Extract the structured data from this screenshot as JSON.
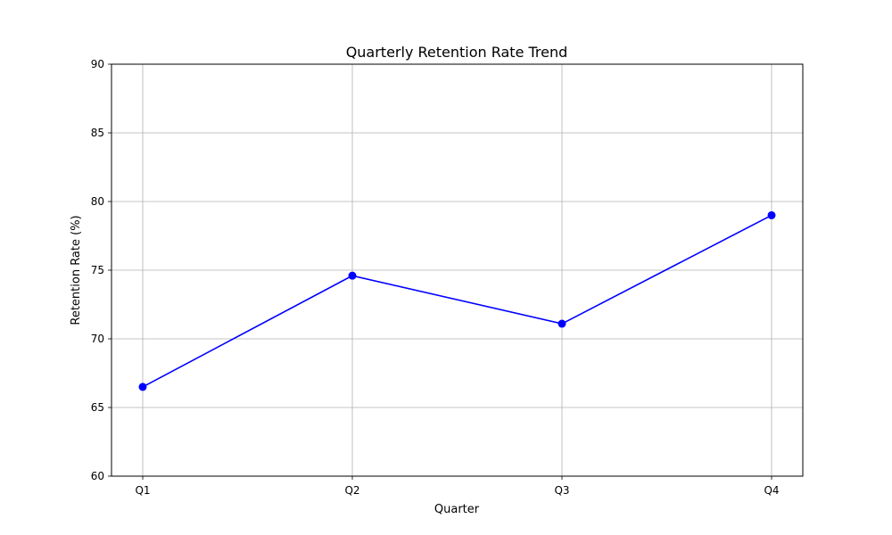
{
  "chart_data": {
    "type": "line",
    "title": "Quarterly Retention Rate Trend",
    "xlabel": "Quarter",
    "ylabel": "Retention Rate (%)",
    "categories": [
      "Q1",
      "Q2",
      "Q3",
      "Q4"
    ],
    "series": [
      {
        "values": [
          66.5,
          74.6,
          71.1,
          79.0
        ],
        "color": "#0000ff",
        "marker": "circle"
      }
    ],
    "ylim": [
      60,
      90
    ],
    "yticks": [
      60,
      65,
      70,
      75,
      80,
      85,
      90
    ],
    "grid": true
  }
}
